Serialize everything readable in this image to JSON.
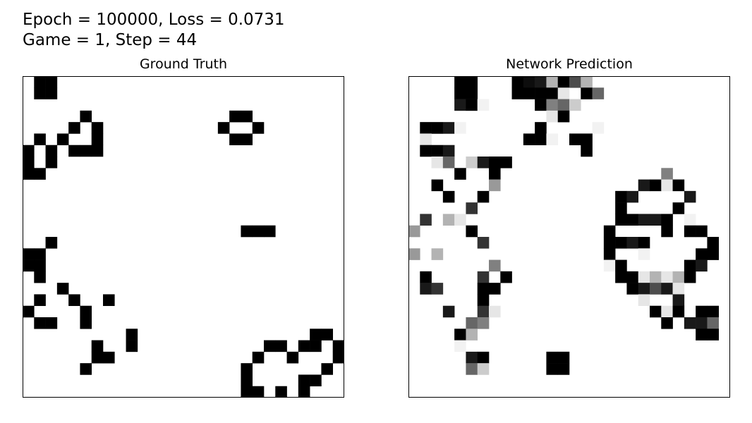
{
  "figure": {
    "line1": "Epoch = 100000, Loss = 0.0731",
    "line2": "Game = 1, Step = 44"
  },
  "chart_data": [
    {
      "type": "heatmap",
      "title": "Ground Truth",
      "colormap": "gray_r",
      "value_range": [
        0,
        1
      ],
      "rows": 28,
      "cols": 28,
      "cells": [
        [
          0,
          1,
          1
        ],
        [
          0,
          2,
          1
        ],
        [
          1,
          1,
          1
        ],
        [
          1,
          2,
          1
        ],
        [
          3,
          5,
          1
        ],
        [
          3,
          18,
          1
        ],
        [
          3,
          19,
          1
        ],
        [
          4,
          4,
          1
        ],
        [
          4,
          6,
          1
        ],
        [
          4,
          17,
          1
        ],
        [
          4,
          20,
          1
        ],
        [
          5,
          1,
          1
        ],
        [
          5,
          3,
          1
        ],
        [
          5,
          6,
          1
        ],
        [
          5,
          18,
          1
        ],
        [
          5,
          19,
          1
        ],
        [
          6,
          0,
          1
        ],
        [
          6,
          2,
          1
        ],
        [
          6,
          4,
          1
        ],
        [
          6,
          5,
          1
        ],
        [
          6,
          6,
          1
        ],
        [
          7,
          0,
          1
        ],
        [
          7,
          2,
          1
        ],
        [
          8,
          0,
          1
        ],
        [
          8,
          1,
          1
        ],
        [
          13,
          19,
          1
        ],
        [
          13,
          20,
          1
        ],
        [
          13,
          21,
          1
        ],
        [
          14,
          2,
          1
        ],
        [
          15,
          0,
          1
        ],
        [
          15,
          1,
          1
        ],
        [
          16,
          0,
          1
        ],
        [
          16,
          1,
          1
        ],
        [
          17,
          1,
          1
        ],
        [
          18,
          3,
          1
        ],
        [
          19,
          1,
          1
        ],
        [
          19,
          4,
          1
        ],
        [
          19,
          7,
          1
        ],
        [
          20,
          0,
          1
        ],
        [
          20,
          5,
          1
        ],
        [
          21,
          1,
          1
        ],
        [
          21,
          2,
          1
        ],
        [
          21,
          5,
          1
        ],
        [
          22,
          9,
          1
        ],
        [
          22,
          25,
          1
        ],
        [
          22,
          26,
          1
        ],
        [
          23,
          6,
          1
        ],
        [
          23,
          9,
          1
        ],
        [
          23,
          21,
          1
        ],
        [
          23,
          22,
          1
        ],
        [
          23,
          24,
          1
        ],
        [
          23,
          25,
          1
        ],
        [
          23,
          27,
          1
        ],
        [
          24,
          6,
          1
        ],
        [
          24,
          7,
          1
        ],
        [
          24,
          20,
          1
        ],
        [
          24,
          23,
          1
        ],
        [
          24,
          27,
          1
        ],
        [
          25,
          5,
          1
        ],
        [
          25,
          19,
          1
        ],
        [
          25,
          26,
          1
        ],
        [
          26,
          19,
          1
        ],
        [
          26,
          24,
          1
        ],
        [
          26,
          25,
          1
        ],
        [
          27,
          19,
          1
        ],
        [
          27,
          20,
          1
        ],
        [
          27,
          22,
          1
        ],
        [
          27,
          24,
          1
        ]
      ]
    },
    {
      "type": "heatmap",
      "title": "Network Prediction",
      "colormap": "gray_r",
      "value_range": [
        0,
        1
      ],
      "rows": 28,
      "cols": 28,
      "cells": [
        [
          0,
          4,
          1
        ],
        [
          0,
          5,
          1
        ],
        [
          0,
          9,
          1
        ],
        [
          0,
          10,
          0.95
        ],
        [
          0,
          11,
          0.9
        ],
        [
          0,
          12,
          0.3
        ],
        [
          0,
          13,
          1
        ],
        [
          0,
          14,
          0.7
        ],
        [
          0,
          15,
          0.3
        ],
        [
          1,
          4,
          1
        ],
        [
          1,
          5,
          1
        ],
        [
          1,
          9,
          1
        ],
        [
          1,
          10,
          1
        ],
        [
          1,
          11,
          1
        ],
        [
          1,
          12,
          1
        ],
        [
          1,
          13,
          0.1
        ],
        [
          1,
          15,
          1
        ],
        [
          1,
          16,
          0.6
        ],
        [
          2,
          4,
          0.9
        ],
        [
          2,
          5,
          1
        ],
        [
          2,
          6,
          0.05
        ],
        [
          2,
          11,
          1
        ],
        [
          2,
          12,
          0.5
        ],
        [
          2,
          13,
          0.6
        ],
        [
          2,
          14,
          0.2
        ],
        [
          3,
          12,
          0.1
        ],
        [
          3,
          13,
          1
        ],
        [
          4,
          1,
          1
        ],
        [
          4,
          2,
          1
        ],
        [
          4,
          3,
          0.9
        ],
        [
          4,
          4,
          0.05
        ],
        [
          4,
          11,
          1
        ],
        [
          4,
          16,
          0.05
        ],
        [
          5,
          1,
          0.1
        ],
        [
          5,
          10,
          1
        ],
        [
          5,
          11,
          1
        ],
        [
          5,
          12,
          0.05
        ],
        [
          5,
          14,
          1
        ],
        [
          5,
          15,
          1
        ],
        [
          6,
          1,
          1
        ],
        [
          6,
          2,
          1
        ],
        [
          6,
          3,
          0.9
        ],
        [
          6,
          15,
          1
        ],
        [
          7,
          2,
          0.1
        ],
        [
          7,
          3,
          0.6
        ],
        [
          7,
          5,
          0.2
        ],
        [
          7,
          6,
          0.9
        ],
        [
          7,
          7,
          1
        ],
        [
          7,
          8,
          1
        ],
        [
          8,
          4,
          1
        ],
        [
          8,
          7,
          1
        ],
        [
          8,
          22,
          0.5
        ],
        [
          9,
          2,
          1
        ],
        [
          9,
          7,
          0.4
        ],
        [
          9,
          20,
          0.9
        ],
        [
          9,
          21,
          1
        ],
        [
          9,
          22,
          0.1
        ],
        [
          9,
          23,
          1
        ],
        [
          10,
          3,
          1
        ],
        [
          10,
          6,
          1
        ],
        [
          10,
          18,
          1
        ],
        [
          10,
          19,
          0.9
        ],
        [
          10,
          24,
          0.9
        ],
        [
          11,
          5,
          0.8
        ],
        [
          11,
          18,
          1
        ],
        [
          11,
          23,
          1
        ],
        [
          12,
          1,
          0.8
        ],
        [
          12,
          3,
          0.3
        ],
        [
          12,
          4,
          0.1
        ],
        [
          12,
          18,
          1
        ],
        [
          12,
          19,
          1
        ],
        [
          12,
          20,
          0.9
        ],
        [
          12,
          21,
          0.9
        ],
        [
          12,
          22,
          1
        ],
        [
          12,
          24,
          0.05
        ],
        [
          13,
          0,
          0.4
        ],
        [
          13,
          5,
          1
        ],
        [
          13,
          17,
          1
        ],
        [
          13,
          22,
          1
        ],
        [
          13,
          24,
          1
        ],
        [
          13,
          25,
          1
        ],
        [
          14,
          6,
          0.8
        ],
        [
          14,
          17,
          1
        ],
        [
          14,
          18,
          1
        ],
        [
          14,
          19,
          0.9
        ],
        [
          14,
          20,
          1
        ],
        [
          14,
          26,
          1
        ],
        [
          15,
          0,
          0.4
        ],
        [
          15,
          2,
          0.3
        ],
        [
          15,
          17,
          1
        ],
        [
          15,
          20,
          0.05
        ],
        [
          15,
          25,
          1
        ],
        [
          15,
          26,
          1
        ],
        [
          16,
          7,
          0.5
        ],
        [
          16,
          17,
          0.05
        ],
        [
          16,
          18,
          1
        ],
        [
          16,
          24,
          1
        ],
        [
          16,
          25,
          0.9
        ],
        [
          17,
          1,
          1
        ],
        [
          17,
          6,
          0.8
        ],
        [
          17,
          8,
          1
        ],
        [
          17,
          18,
          1
        ],
        [
          17,
          19,
          1
        ],
        [
          17,
          20,
          0.1
        ],
        [
          17,
          21,
          0.3
        ],
        [
          17,
          22,
          0.1
        ],
        [
          17,
          23,
          0.3
        ],
        [
          17,
          24,
          1
        ],
        [
          18,
          1,
          0.9
        ],
        [
          18,
          2,
          0.8
        ],
        [
          18,
          6,
          1
        ],
        [
          18,
          7,
          1
        ],
        [
          18,
          19,
          1
        ],
        [
          18,
          20,
          0.9
        ],
        [
          18,
          21,
          0.7
        ],
        [
          18,
          22,
          0.9
        ],
        [
          18,
          23,
          0.1
        ],
        [
          19,
          6,
          1
        ],
        [
          19,
          20,
          0.1
        ],
        [
          19,
          23,
          0.9
        ],
        [
          20,
          3,
          0.9
        ],
        [
          20,
          6,
          0.8
        ],
        [
          20,
          7,
          0.1
        ],
        [
          20,
          21,
          1
        ],
        [
          20,
          22,
          0.1
        ],
        [
          20,
          23,
          1
        ],
        [
          20,
          25,
          1
        ],
        [
          20,
          26,
          1
        ],
        [
          21,
          5,
          0.6
        ],
        [
          21,
          6,
          0.5
        ],
        [
          21,
          22,
          1
        ],
        [
          21,
          24,
          0.9
        ],
        [
          21,
          25,
          0.9
        ],
        [
          21,
          26,
          0.6
        ],
        [
          22,
          4,
          1
        ],
        [
          22,
          5,
          0.3
        ],
        [
          22,
          25,
          1
        ],
        [
          22,
          26,
          1
        ],
        [
          23,
          4,
          0.05
        ],
        [
          24,
          5,
          0.9
        ],
        [
          24,
          6,
          1
        ],
        [
          24,
          12,
          1
        ],
        [
          24,
          13,
          1
        ],
        [
          25,
          5,
          0.6
        ],
        [
          25,
          6,
          0.2
        ],
        [
          25,
          12,
          1
        ],
        [
          25,
          13,
          1
        ]
      ]
    }
  ]
}
